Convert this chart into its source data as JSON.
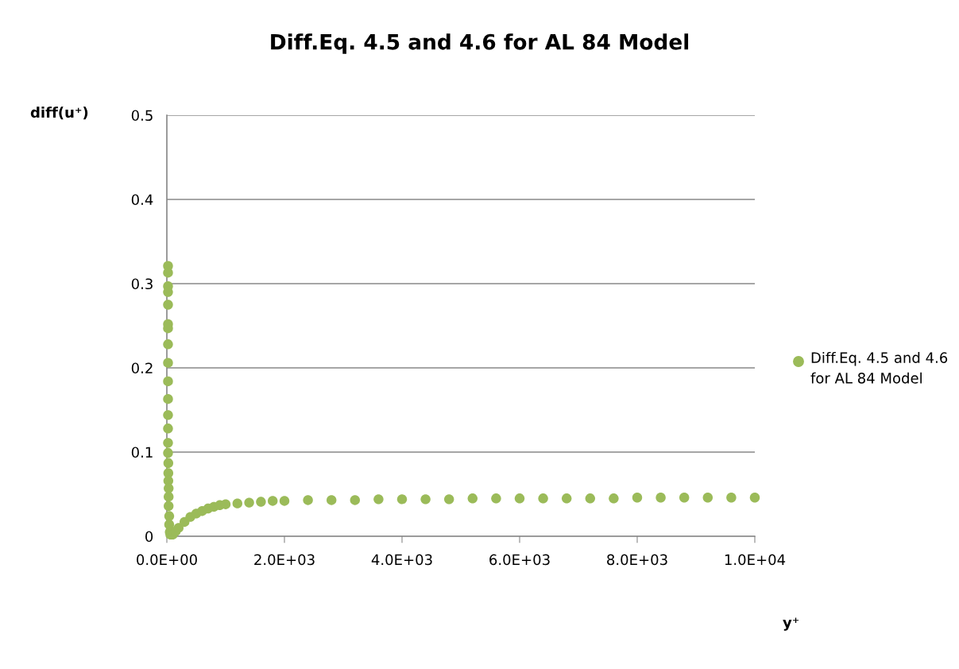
{
  "chart_data": {
    "type": "scatter",
    "title": "Diff.Eq. 4.5 and 4.6 for AL 84 Model",
    "xlabel": "y⁺",
    "ylabel": "diff(u⁺)",
    "series": [
      {
        "name": "Diff.Eq. 4.5 and 4.6 for AL 84 Model",
        "color": "#9bbb59",
        "x": [
          20,
          20,
          20,
          20,
          20,
          20,
          20,
          20,
          20,
          20,
          20,
          20,
          20,
          20,
          20,
          25,
          25,
          25,
          30,
          30,
          30,
          40,
          40,
          50,
          60,
          100,
          150,
          200,
          300,
          400,
          500,
          600,
          700,
          800,
          900,
          1000,
          1200,
          1400,
          1600,
          1800,
          2000,
          2400,
          2800,
          3200,
          3600,
          4000,
          4400,
          4800,
          5200,
          5600,
          6000,
          6400,
          6800,
          7200,
          7600,
          8000,
          8400,
          8800,
          9200,
          9600,
          10000
        ],
        "values": [
          0.321,
          0.313,
          0.297,
          0.29,
          0.275,
          0.252,
          0.247,
          0.228,
          0.206,
          0.184,
          0.163,
          0.144,
          0.128,
          0.111,
          0.099,
          0.087,
          0.075,
          0.066,
          0.057,
          0.047,
          0.036,
          0.024,
          0.014,
          0.005,
          0.002,
          0.002,
          0.006,
          0.01,
          0.017,
          0.023,
          0.027,
          0.03,
          0.033,
          0.035,
          0.037,
          0.038,
          0.039,
          0.04,
          0.041,
          0.042,
          0.042,
          0.043,
          0.043,
          0.043,
          0.044,
          0.044,
          0.044,
          0.044,
          0.045,
          0.045,
          0.045,
          0.045,
          0.045,
          0.045,
          0.045,
          0.046,
          0.046,
          0.046,
          0.046,
          0.046,
          0.046
        ]
      }
    ],
    "xlim": [
      0,
      10000
    ],
    "ylim": [
      0,
      0.5
    ],
    "xticks": [
      {
        "value": 0,
        "label": "0.0E+00"
      },
      {
        "value": 2000,
        "label": "2.0E+03"
      },
      {
        "value": 4000,
        "label": "4.0E+03"
      },
      {
        "value": 6000,
        "label": "6.0E+03"
      },
      {
        "value": 8000,
        "label": "8.0E+03"
      },
      {
        "value": 10000,
        "label": "1.0E+04"
      }
    ],
    "yticks": [
      0,
      0.1,
      0.2,
      0.3,
      0.4,
      0.5
    ],
    "grid": "y",
    "legend": "right",
    "marker": "circle"
  }
}
